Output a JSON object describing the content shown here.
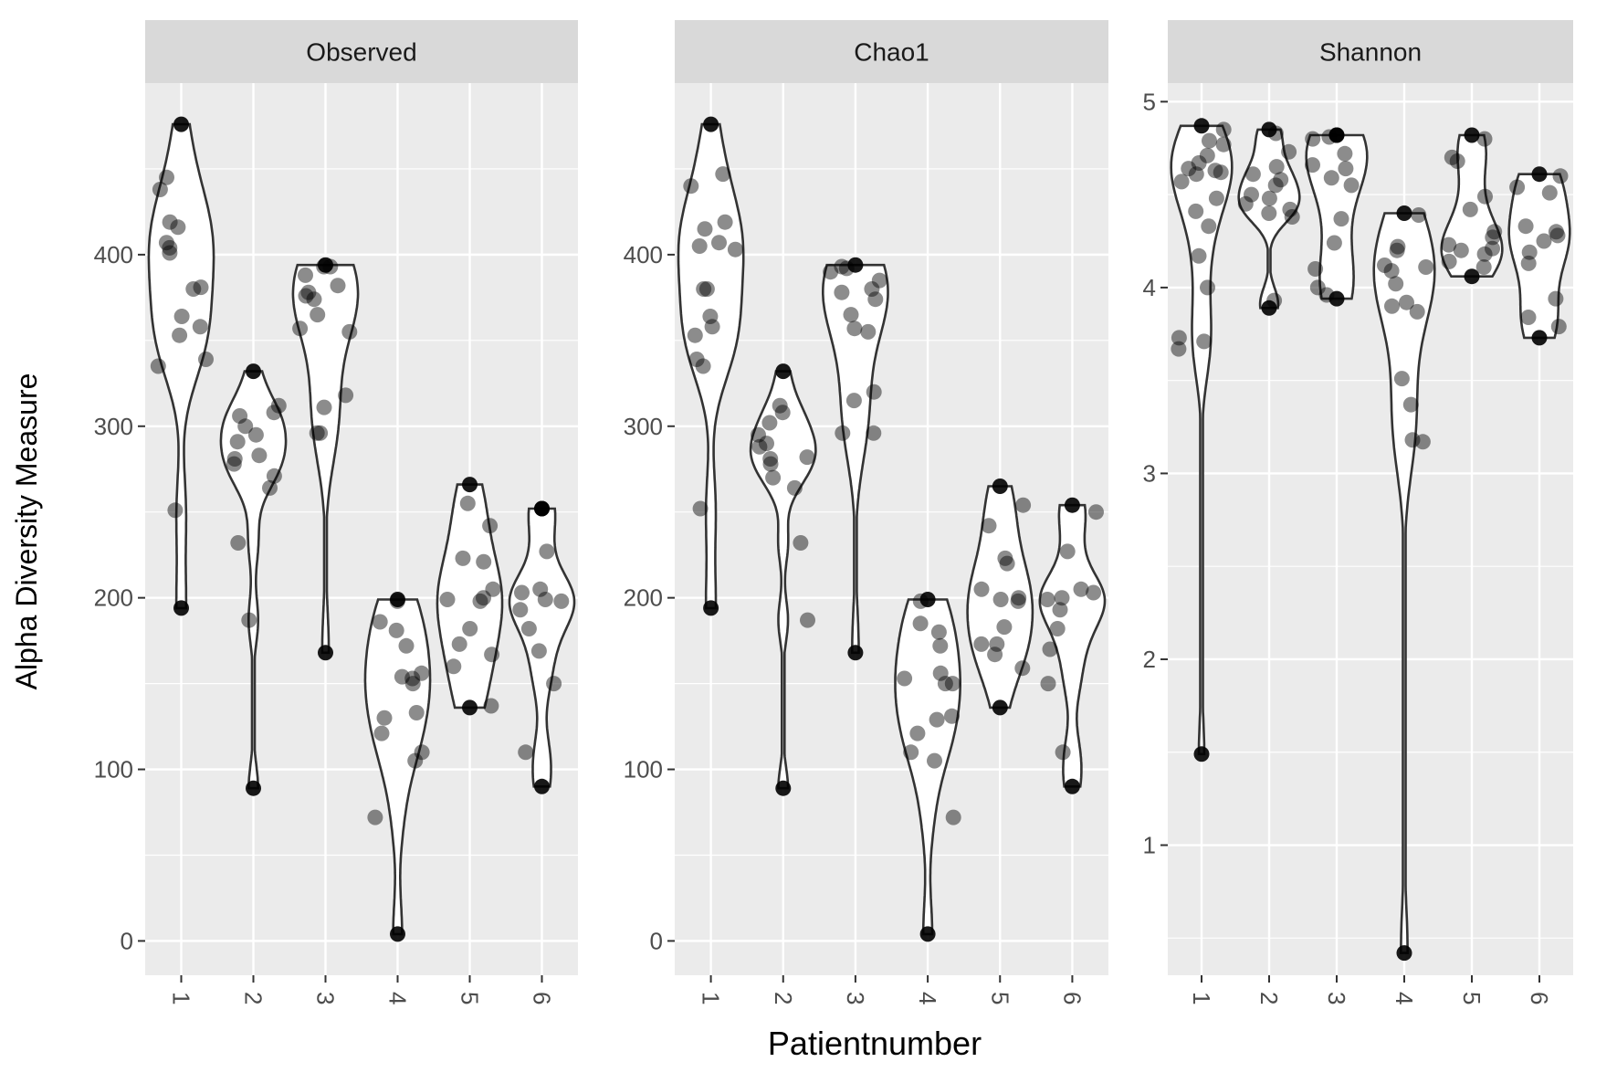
{
  "chart_data": {
    "type": "violin",
    "ylabel": "Alpha Diversity Measure",
    "xlabel": "Patientnumber",
    "categories": [
      "1",
      "2",
      "3",
      "4",
      "5",
      "6"
    ],
    "point_color": "#000000",
    "violin_stroke": "#333333",
    "panel_background": "#EBEBEB",
    "strip_background": "#D9D9D9",
    "grid_color": "#FFFFFF",
    "panels": [
      {
        "name": "Observed",
        "ylim": [
          -20,
          500
        ],
        "yticks": [
          0,
          100,
          200,
          300,
          400
        ],
        "ytick_labels": [
          "0",
          "100",
          "200",
          "300",
          "400"
        ],
        "groups": [
          {
            "category": "1",
            "values": [
              476,
              445,
              438,
              419,
              416,
              407,
              404,
              401,
              381,
              380,
              364,
              358,
              353,
              339,
              335,
              251,
              194
            ]
          },
          {
            "category": "2",
            "values": [
              332,
              312,
              308,
              306,
              300,
              295,
              291,
              283,
              281,
              278,
              271,
              264,
              232,
              187,
              89
            ]
          },
          {
            "category": "3",
            "values": [
              394,
              393,
              393,
              388,
              382,
              378,
              376,
              374,
              365,
              357,
              355,
              318,
              311,
              296,
              296,
              168
            ]
          },
          {
            "category": "4",
            "values": [
              199,
              198,
              186,
              181,
              172,
              156,
              154,
              153,
              150,
              133,
              130,
              121,
              110,
              105,
              72,
              4
            ]
          },
          {
            "category": "5",
            "values": [
              266,
              255,
              242,
              223,
              221,
              205,
              200,
              199,
              198,
              182,
              173,
              167,
              160,
              137,
              136
            ]
          },
          {
            "category": "6",
            "values": [
              252,
              252,
              227,
              205,
              203,
              199,
              198,
              193,
              182,
              169,
              150,
              110,
              90
            ]
          }
        ]
      },
      {
        "name": "Chao1",
        "ylim": [
          -20,
          500
        ],
        "yticks": [
          0,
          100,
          200,
          300,
          400
        ],
        "ytick_labels": [
          "0",
          "100",
          "200",
          "300",
          "400"
        ],
        "groups": [
          {
            "category": "1",
            "values": [
              476,
              447,
              440,
              419,
              415,
              407,
              405,
              403,
              380,
              380,
              364,
              358,
              353,
              339,
              335,
              252,
              194
            ]
          },
          {
            "category": "2",
            "values": [
              332,
              312,
              308,
              302,
              295,
              290,
              288,
              282,
              281,
              278,
              270,
              264,
              232,
              187,
              89
            ]
          },
          {
            "category": "3",
            "values": [
              394,
              393,
              392,
              390,
              385,
              380,
              378,
              374,
              365,
              357,
              355,
              320,
              315,
              296,
              296,
              168
            ]
          },
          {
            "category": "4",
            "values": [
              199,
              198,
              185,
              180,
              172,
              156,
              153,
              150,
              150,
              131,
              129,
              121,
              110,
              105,
              72,
              4
            ]
          },
          {
            "category": "5",
            "values": [
              265,
              254,
              242,
              223,
              220,
              205,
              200,
              199,
              198,
              183,
              173,
              173,
              167,
              159,
              136
            ]
          },
          {
            "category": "6",
            "values": [
              254,
              250,
              227,
              205,
              203,
              200,
              199,
              193,
              182,
              170,
              150,
              110,
              90
            ]
          }
        ]
      },
      {
        "name": "Shannon",
        "ylim": [
          0.3,
          5.1
        ],
        "yticks": [
          1,
          2,
          3,
          4,
          5
        ],
        "ytick_labels": [
          "1",
          "2",
          "3",
          "4",
          "5"
        ],
        "groups": [
          {
            "category": "1",
            "values": [
              4.87,
              4.85,
              4.79,
              4.77,
              4.71,
              4.67,
              4.64,
              4.63,
              4.62,
              4.61,
              4.57,
              4.48,
              4.41,
              4.33,
              4.17,
              4.0,
              3.73,
              3.71,
              3.67,
              1.49
            ]
          },
          {
            "category": "2",
            "values": [
              4.85,
              4.83,
              4.73,
              4.65,
              4.61,
              4.58,
              4.55,
              4.5,
              4.48,
              4.45,
              4.42,
              4.4,
              4.38,
              3.93,
              3.89
            ]
          },
          {
            "category": "3",
            "values": [
              4.82,
              4.82,
              4.81,
              4.8,
              4.72,
              4.66,
              4.64,
              4.59,
              4.55,
              4.37,
              4.24,
              4.1,
              4.0,
              3.96,
              3.94
            ]
          },
          {
            "category": "4",
            "values": [
              4.4,
              4.39,
              4.22,
              4.2,
              4.12,
              4.11,
              4.09,
              4.02,
              3.92,
              3.9,
              3.87,
              3.51,
              3.37,
              3.18,
              3.17,
              0.42
            ]
          },
          {
            "category": "5",
            "values": [
              4.82,
              4.8,
              4.7,
              4.68,
              4.49,
              4.42,
              4.3,
              4.27,
              4.23,
              4.21,
              4.2,
              4.18,
              4.14,
              4.11,
              4.06
            ]
          },
          {
            "category": "6",
            "values": [
              4.61,
              4.6,
              4.54,
              4.51,
              4.33,
              4.3,
              4.28,
              4.25,
              4.19,
              4.13,
              3.94,
              3.84,
              3.79,
              3.73
            ]
          }
        ]
      }
    ]
  }
}
